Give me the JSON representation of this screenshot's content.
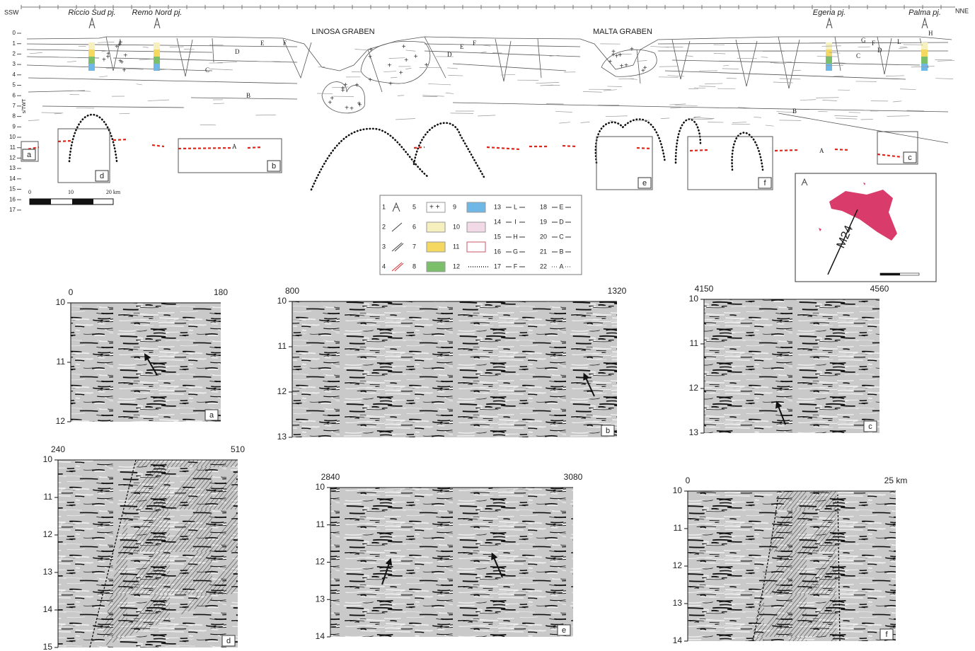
{
  "profile": {
    "ends": [
      "SSW",
      "NNE"
    ],
    "wells": [
      "Riccio Sud pj.",
      "Remo Nord pj.",
      "Egeria pj.",
      "Palma pj."
    ],
    "grabens": [
      "LINOSA GRABEN",
      "MALTA GRABEN"
    ],
    "depth_label": "s/TWT",
    "depth_ticks": [
      "0",
      "1",
      "2",
      "3",
      "4",
      "5",
      "6",
      "7",
      "8",
      "9",
      "10",
      "11",
      "12",
      "13",
      "14",
      "15",
      "16",
      "17"
    ],
    "horizons": [
      "D",
      "E",
      "F",
      "C",
      "B",
      "D",
      "E",
      "F",
      "G",
      "F",
      "D",
      "C",
      "L",
      "H",
      "B",
      "A",
      "A"
    ],
    "boxes": [
      "a",
      "d",
      "b",
      "e",
      "f",
      "c"
    ],
    "scale": [
      "0",
      "10",
      "20 km"
    ]
  },
  "legend": {
    "items": [
      {
        "number": "1"
      },
      {
        "number": "2"
      },
      {
        "number": "3"
      },
      {
        "number": "4"
      },
      {
        "number": "5"
      },
      {
        "number": "6"
      },
      {
        "number": "7"
      },
      {
        "number": "8"
      },
      {
        "number": "9"
      },
      {
        "number": "10"
      },
      {
        "number": "11"
      },
      {
        "number": "12"
      },
      {
        "number": "13",
        "symbol": "L"
      },
      {
        "number": "14",
        "symbol": "I"
      },
      {
        "number": "15",
        "symbol": "H"
      },
      {
        "number": "16",
        "symbol": "G"
      },
      {
        "number": "17",
        "symbol": "F"
      },
      {
        "number": "18",
        "symbol": "E"
      },
      {
        "number": "19",
        "symbol": "D"
      },
      {
        "number": "20",
        "symbol": "C"
      },
      {
        "number": "21",
        "symbol": "B"
      },
      {
        "number": "22",
        "symbol": "A"
      }
    ]
  },
  "map": {
    "line": "M24"
  },
  "panels": [
    {
      "label": "a",
      "x_labels": [
        "0",
        "180"
      ],
      "y_labels": [
        "10",
        "11",
        "12"
      ]
    },
    {
      "label": "b",
      "x_labels": [
        "800",
        "1320"
      ],
      "y_labels": [
        "10",
        "11",
        "12",
        "13"
      ]
    },
    {
      "label": "c",
      "x_labels": [
        "4150",
        "4560"
      ],
      "y_labels": [
        "10",
        "11",
        "12",
        "13"
      ]
    },
    {
      "label": "d",
      "x_labels": [
        "240",
        "510"
      ],
      "y_labels": [
        "10",
        "11",
        "12",
        "13",
        "14",
        "15"
      ]
    },
    {
      "label": "e",
      "x_labels": [
        "2840",
        "3080"
      ],
      "y_labels": [
        "10",
        "11",
        "12",
        "13",
        "14"
      ]
    },
    {
      "label": "f",
      "x_labels": [
        "0",
        "25 km"
      ],
      "y_labels": [
        "10",
        "11",
        "12",
        "13",
        "14"
      ]
    }
  ]
}
